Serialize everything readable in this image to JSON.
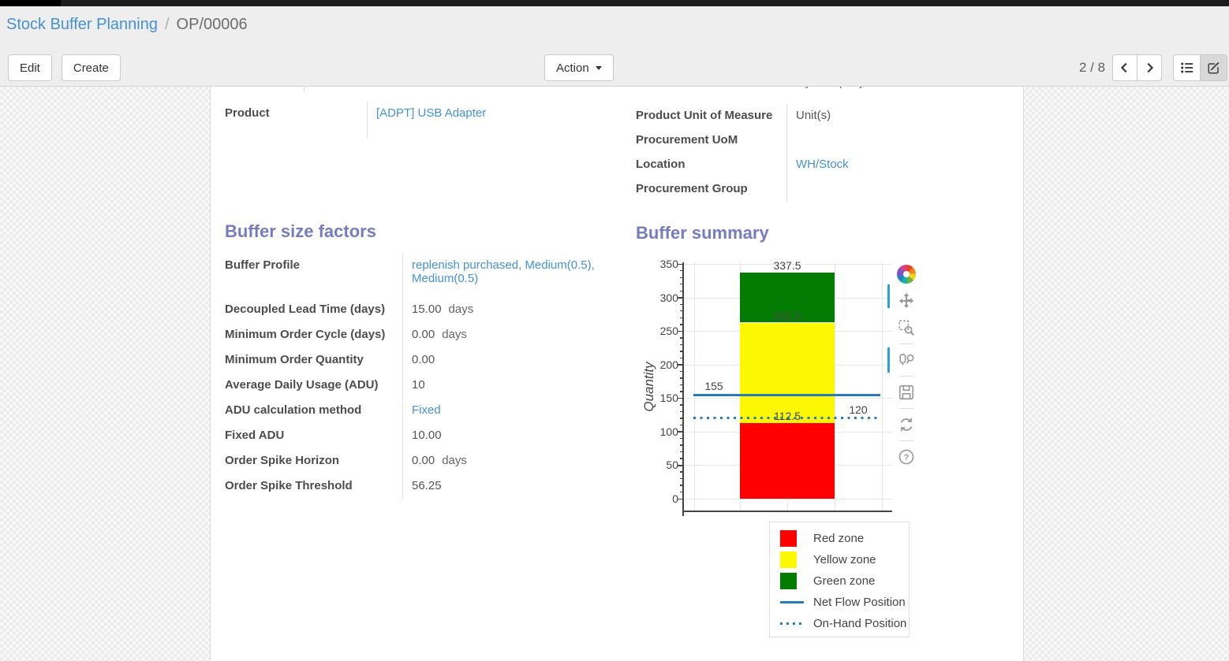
{
  "breadcrumb": {
    "parent": "Stock Buffer Planning",
    "separator": "/",
    "current": "OP/00006"
  },
  "toolbar": {
    "edit": "Edit",
    "create": "Create",
    "action": "Action"
  },
  "pager": {
    "text": "2 / 8"
  },
  "view_switcher": {
    "buttons": [
      "list",
      "form"
    ],
    "active": "form"
  },
  "form": {
    "clipped_value": "My Company",
    "top_left": [
      {
        "label": "Product",
        "value": "[ADPT] USB Adapter",
        "link": true
      }
    ],
    "top_right": [
      {
        "label": "Product Unit of Measure",
        "value": "Unit(s)"
      },
      {
        "label": "Procurement UoM",
        "value": ""
      },
      {
        "label": "Location",
        "value": "WH/Stock",
        "link": true
      },
      {
        "label": "Procurement Group",
        "value": ""
      }
    ],
    "factors": {
      "title": "Buffer size factors",
      "rows": [
        {
          "label": "Buffer Profile",
          "value": "replenish purchased, Medium(0.5), Medium(0.5)",
          "link": true
        },
        {
          "label": "Decoupled Lead Time (days)",
          "value": "15.00",
          "suffix": "days"
        },
        {
          "label": "Minimum Order Cycle (days)",
          "value": "0.00",
          "suffix": "days"
        },
        {
          "label": "Minimum Order Quantity",
          "value": "0.00"
        },
        {
          "label": "Average Daily Usage (ADU)",
          "value": "10"
        },
        {
          "label": "ADU calculation method",
          "value": "Fixed",
          "link": true
        },
        {
          "label": "Fixed ADU",
          "value": "10.00"
        },
        {
          "label": "Order Spike Horizon",
          "value": "0.00",
          "suffix": "days"
        },
        {
          "label": "Order Spike Threshold",
          "value": "56.25"
        }
      ]
    },
    "summary": {
      "title": "Buffer summary"
    }
  },
  "chart_data": {
    "type": "bar",
    "title": "Buffer summary",
    "xlabel": "",
    "ylabel": "Quantity",
    "ylim": [
      0,
      350
    ],
    "ytick_step": 50,
    "yminor_step": 10,
    "grid": true,
    "categories": [
      "buffer"
    ],
    "series": [
      {
        "name": "Red zone",
        "color": "#fe0000",
        "values": [
          112.5
        ]
      },
      {
        "name": "Yellow zone",
        "color": "#fcf804",
        "values": [
          150
        ]
      },
      {
        "name": "Green zone",
        "color": "#037c03",
        "values": [
          75
        ]
      }
    ],
    "stack_boundaries": [
      112.5,
      262.5,
      337.5
    ],
    "bar_value_labels": [
      "337.5",
      "262.5",
      "112.5"
    ],
    "lines": [
      {
        "name": "Net Flow Position",
        "value": 155,
        "label": "155",
        "style": "solid",
        "color": "#2b7bb9"
      },
      {
        "name": "On-Hand Position",
        "value": 120,
        "label": "120",
        "style": "dotted",
        "color": "#2b7bb9"
      }
    ],
    "legend_position": "below-right",
    "legend_items": [
      {
        "label": "Red zone",
        "swatch": "square",
        "color": "#fe0000"
      },
      {
        "label": "Yellow zone",
        "swatch": "square",
        "color": "#fcf804"
      },
      {
        "label": "Green zone",
        "swatch": "square",
        "color": "#037c03"
      },
      {
        "label": "Net Flow Position",
        "swatch": "line-solid",
        "color": "#2b7bb9"
      },
      {
        "label": "On-Hand Position",
        "swatch": "line-dotted",
        "color": "#2b7bb9"
      }
    ],
    "modebar": [
      "plotly-logo",
      "pan",
      "box-zoom",
      "compare-hover",
      "snapshot",
      "reset-view",
      "help"
    ]
  }
}
